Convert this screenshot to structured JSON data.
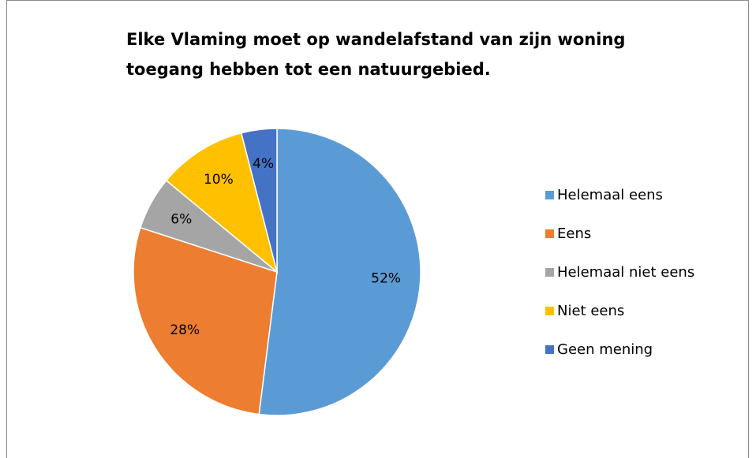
{
  "chart_data": {
    "type": "pie",
    "title": [
      "Elke Vlaming moet op wandelafstand van zijn woning",
      "toegang hebben tot een natuurgebied."
    ],
    "categories": [
      "Helemaal eens",
      "Eens",
      "Helemaal niet eens",
      "Niet eens",
      "Geen mening"
    ],
    "values": [
      52,
      28,
      6,
      10,
      4
    ],
    "value_labels": [
      "52%",
      "28%",
      "6%",
      "10%",
      "4%"
    ],
    "colors": [
      "#5b9bd5",
      "#ed7d31",
      "#a5a5a5",
      "#ffc000",
      "#4472c4"
    ],
    "legend": "right"
  }
}
